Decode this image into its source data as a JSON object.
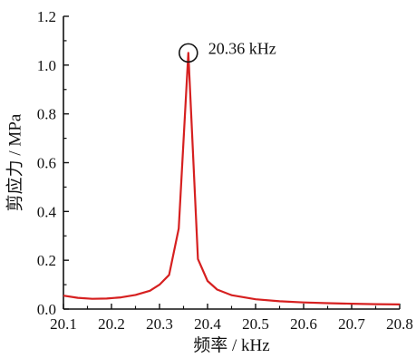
{
  "chart_data": {
    "type": "line",
    "title": "",
    "xlabel": "频率 / kHz",
    "ylabel": "剪应力 / MPa",
    "xlim": [
      20.1,
      20.8
    ],
    "ylim": [
      0.0,
      1.2
    ],
    "xticks": [
      "20.1",
      "20.2",
      "20.3",
      "20.4",
      "20.5",
      "20.6",
      "20.7",
      "20.8"
    ],
    "yticks": [
      "0.0",
      "0.2",
      "0.4",
      "0.6",
      "0.8",
      "1.0",
      "1.2"
    ],
    "grid": false,
    "series": [
      {
        "color": "#d62020",
        "x": [
          20.1,
          20.13,
          20.16,
          20.19,
          20.22,
          20.25,
          20.28,
          20.3,
          20.32,
          20.34,
          20.36,
          20.38,
          20.4,
          20.42,
          20.45,
          20.5,
          20.55,
          20.6,
          20.65,
          20.7,
          20.75,
          20.8
        ],
        "y": [
          0.055,
          0.046,
          0.042,
          0.043,
          0.048,
          0.058,
          0.075,
          0.1,
          0.14,
          0.33,
          1.05,
          0.205,
          0.115,
          0.08,
          0.057,
          0.04,
          0.032,
          0.027,
          0.024,
          0.022,
          0.02,
          0.019
        ]
      }
    ],
    "annotation": {
      "text": "20.36 kHz",
      "x": 20.36,
      "y": 1.05,
      "marker": "circle"
    }
  }
}
